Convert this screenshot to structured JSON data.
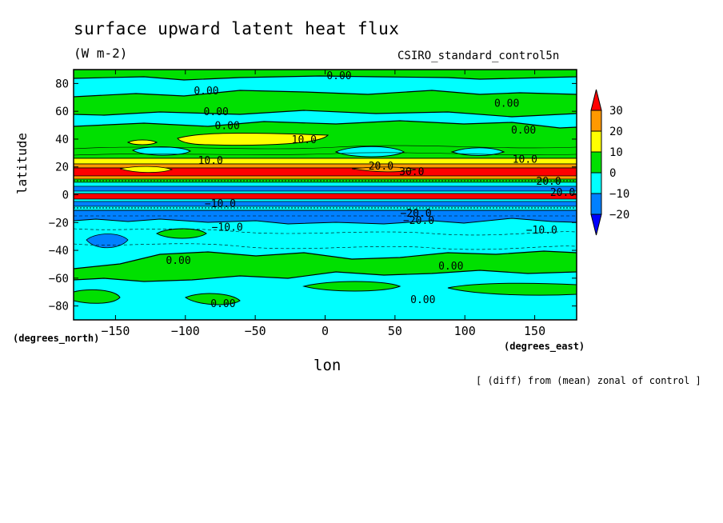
{
  "chart_data": {
    "type": "contour",
    "title": "surface upward latent heat flux",
    "units": "(W m-2)",
    "dataset": "CSIRO_standard_control5n",
    "xlabel": "lon",
    "ylabel": "latitude",
    "x_units_label": "(degrees_east)",
    "y_units_label": "(degrees_north)",
    "footnote": "[ (diff) from (mean) zonal of control ]",
    "xlim": [
      -180,
      180
    ],
    "ylim": [
      -90,
      90
    ],
    "x_ticks": [
      -150,
      -100,
      -50,
      0,
      50,
      100,
      150
    ],
    "x_tick_labels": [
      "−150",
      "−100",
      "−50",
      "0",
      "50",
      "100",
      "150"
    ],
    "y_ticks": [
      -80,
      -60,
      -40,
      -20,
      0,
      20,
      40,
      60,
      80
    ],
    "y_tick_labels": [
      "−80",
      "−60",
      "−40",
      "−20",
      "0",
      "20",
      "40",
      "60",
      "80"
    ],
    "colorbar": {
      "levels": [
        "30",
        "20",
        "10",
        "0",
        "−10",
        "−20"
      ],
      "colors": [
        "#ff0000",
        "#ff9900",
        "#ffff00",
        "#00e000",
        "#00ffff",
        "#0080ff",
        "#0000ff"
      ]
    },
    "contour_labels": [
      {
        "text": "0.00",
        "lon": 10,
        "lat": 86
      },
      {
        "text": "0.00",
        "lon": -85,
        "lat": 75
      },
      {
        "text": "0.00",
        "lon": 130,
        "lat": 66
      },
      {
        "text": "0.00",
        "lon": -78,
        "lat": 60
      },
      {
        "text": "0.00",
        "lon": -70,
        "lat": 50
      },
      {
        "text": "0.00",
        "lon": 142,
        "lat": 47
      },
      {
        "text": "10.0",
        "lon": -15,
        "lat": 40
      },
      {
        "text": "10.0",
        "lon": -82,
        "lat": 25
      },
      {
        "text": "10.0",
        "lon": 143,
        "lat": 26
      },
      {
        "text": "20.0",
        "lon": 40,
        "lat": 21
      },
      {
        "text": "30.0",
        "lon": 62,
        "lat": 17
      },
      {
        "text": "20.0",
        "lon": 160,
        "lat": 10
      },
      {
        "text": "20.0",
        "lon": 170,
        "lat": 2
      },
      {
        "text": "−10.0",
        "lon": -75,
        "lat": -6
      },
      {
        "text": "−20.0",
        "lon": 65,
        "lat": -13
      },
      {
        "text": "−20.0",
        "lon": 67,
        "lat": -18
      },
      {
        "text": "−10.0",
        "lon": -70,
        "lat": -23
      },
      {
        "text": "−10.0",
        "lon": 155,
        "lat": -25
      },
      {
        "text": "0.00",
        "lon": -105,
        "lat": -47
      },
      {
        "text": "0.00",
        "lon": 90,
        "lat": -51
      },
      {
        "text": "0.00",
        "lon": -73,
        "lat": -78
      },
      {
        "text": "0.00",
        "lon": 70,
        "lat": -75
      }
    ]
  }
}
